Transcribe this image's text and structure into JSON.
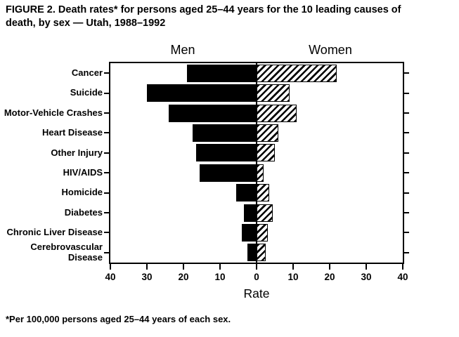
{
  "figure": {
    "title": "FIGURE 2. Death rates* for persons aged 25–44 years for the 10 leading causes of death, by sex — Utah, 1988–1992",
    "footnote": "*Per 100,000 persons aged 25–44 years of each sex."
  },
  "chart_data": {
    "type": "bar",
    "subtype": "horizontal-diverging-back-to-back",
    "title": "FIGURE 2. Death rates* for persons aged 25–44 years for the 10 leading causes of death, by sex — Utah, 1988–1992",
    "categories": [
      "Cancer",
      "Suicide",
      "Motor-Vehicle Crashes",
      "Heart Disease",
      "Other Injury",
      "HIV/AIDS",
      "Homicide",
      "Diabetes",
      "Chronic Liver Disease",
      "Cerebrovascular Disease"
    ],
    "series": [
      {
        "name": "Men",
        "side": "left",
        "style": "solid-black",
        "values": [
          19,
          30,
          24,
          17.5,
          16.5,
          15.5,
          5.5,
          3.5,
          4,
          2.5
        ]
      },
      {
        "name": "Women",
        "side": "right",
        "style": "diagonal-hatch",
        "values": [
          22,
          9,
          11,
          6,
          5,
          2,
          3.5,
          4.5,
          3,
          2.5
        ]
      }
    ],
    "x_axis": {
      "label": "Rate",
      "max_each_side": 40,
      "ticks": [
        "40",
        "30",
        "20",
        "10",
        "0",
        "10",
        "20",
        "30",
        "40"
      ]
    },
    "footnote": "*Per 100,000 persons aged 25–44 years of each sex.",
    "grid": false,
    "legend_position": "above-plot-as-side-headers",
    "colors": {
      "bar": "#000000",
      "background": "#ffffff"
    }
  }
}
